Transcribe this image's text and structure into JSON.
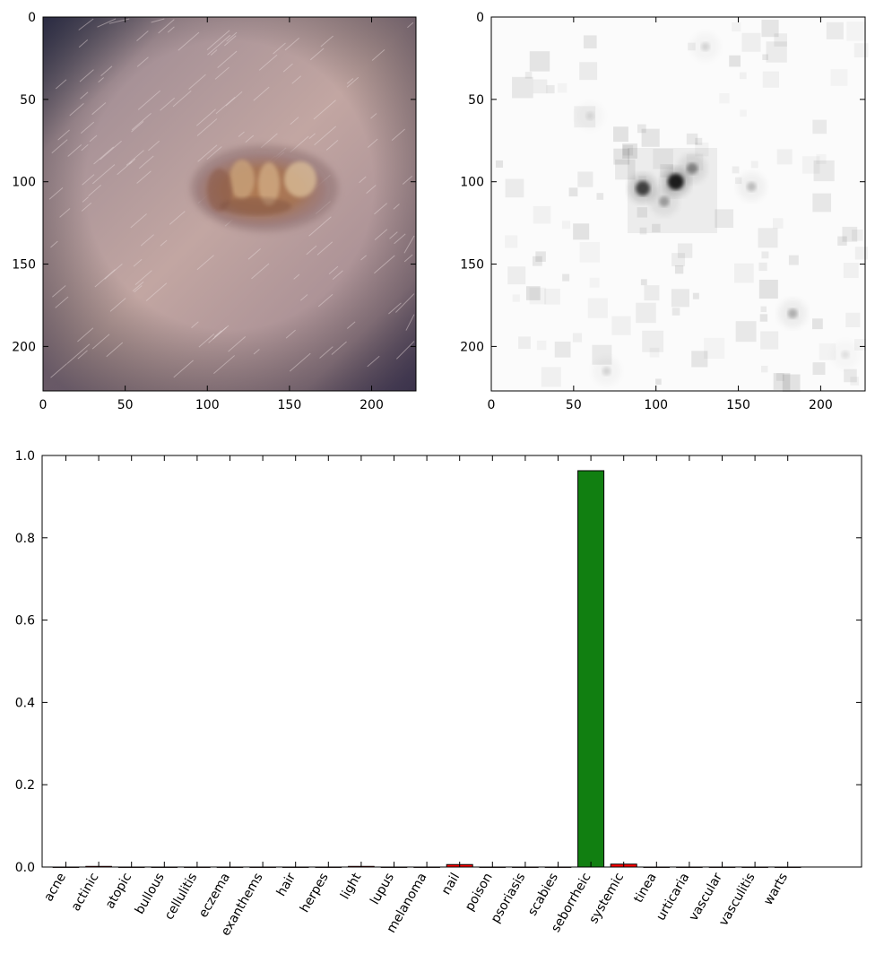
{
  "chart_data": [
    {
      "type": "image",
      "description_key": "skin-lesion-photo",
      "xlim": [
        0,
        227
      ],
      "ylim": [
        227,
        0
      ],
      "x_ticks": [
        "0",
        "50",
        "100",
        "150",
        "200"
      ],
      "y_ticks": [
        "0",
        "50",
        "100",
        "150",
        "200"
      ]
    },
    {
      "type": "heatmap",
      "colormap": "gray_r",
      "xlim": [
        0,
        227
      ],
      "ylim": [
        227,
        0
      ],
      "x_ticks": [
        "0",
        "50",
        "100",
        "150",
        "200"
      ],
      "y_ticks": [
        "0",
        "50",
        "100",
        "150",
        "200"
      ],
      "hotspots": [
        {
          "x": 112,
          "y": 100,
          "intensity": 1.0
        },
        {
          "x": 92,
          "y": 104,
          "intensity": 0.8
        },
        {
          "x": 122,
          "y": 92,
          "intensity": 0.45
        },
        {
          "x": 105,
          "y": 112,
          "intensity": 0.35
        },
        {
          "x": 158,
          "y": 103,
          "intensity": 0.25
        },
        {
          "x": 183,
          "y": 180,
          "intensity": 0.3
        },
        {
          "x": 130,
          "y": 18,
          "intensity": 0.15
        },
        {
          "x": 60,
          "y": 60,
          "intensity": 0.1
        },
        {
          "x": 70,
          "y": 215,
          "intensity": 0.15
        },
        {
          "x": 215,
          "y": 205,
          "intensity": 0.1
        }
      ]
    },
    {
      "type": "bar",
      "categories": [
        "acne",
        "actinic",
        "atopic",
        "bullous",
        "cellulitis",
        "eczema",
        "exanthems",
        "hair",
        "herpes",
        "light",
        "lupus",
        "melanoma",
        "nail",
        "poison",
        "psoriasis",
        "scabies",
        "seborrheic",
        "systemic",
        "tinea",
        "urticaria",
        "vascular",
        "vasculitis",
        "warts"
      ],
      "values": [
        0.0,
        0.002,
        0.0,
        0.0,
        0.0,
        0.0,
        0.0,
        0.0,
        0.0,
        0.002,
        0.0,
        0.0,
        0.006,
        0.0,
        0.0,
        0.0,
        0.963,
        0.007,
        0.0,
        0.0,
        0.0,
        0.0,
        0.0
      ],
      "bar_colors": [
        "#ff0000",
        "#ff0000",
        "#ff0000",
        "#ff0000",
        "#ff0000",
        "#ff0000",
        "#ff0000",
        "#ff0000",
        "#ff0000",
        "#ff0000",
        "#ff0000",
        "#ff0000",
        "#ff0000",
        "#ff0000",
        "#ff0000",
        "#ff0000",
        "#117f11",
        "#ff0000",
        "#ff0000",
        "#ff0000",
        "#ff0000",
        "#ff0000",
        "#ff0000"
      ],
      "ylim": [
        0,
        1.0
      ],
      "y_ticks": [
        "0.0",
        "0.2",
        "0.4",
        "0.6",
        "0.8",
        "1.0"
      ],
      "title": "",
      "xlabel": "",
      "ylabel": ""
    }
  ]
}
